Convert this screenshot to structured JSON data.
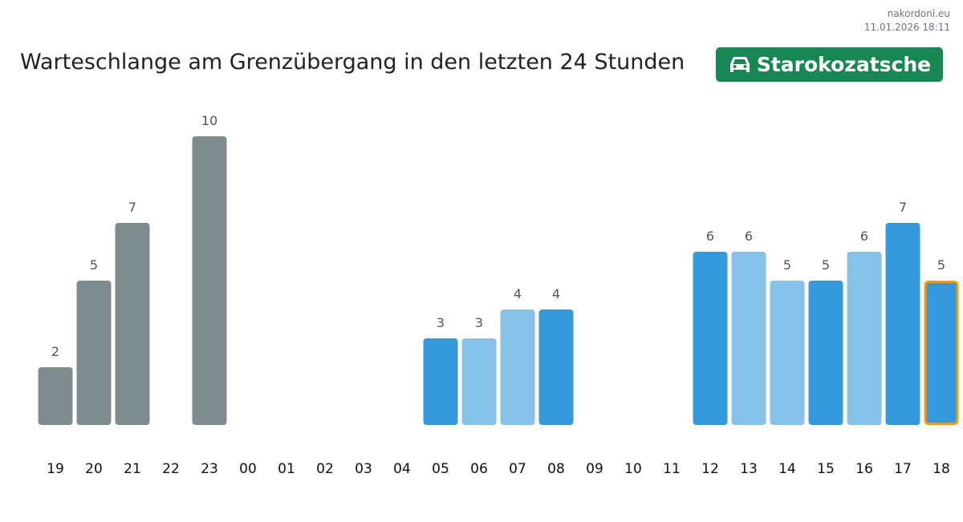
{
  "source": {
    "site": "nakordoni.eu",
    "timestamp": "11.01.2026 18:11"
  },
  "title": "Warteschlange am Grenzübergang in den letzten 24 Stunden",
  "badge": {
    "icon": "car-icon",
    "label": "Starokozatsche",
    "color": "#198754"
  },
  "colors": {
    "past": "#7f8c8d",
    "dark": "#3498db",
    "light": "#85c1e9",
    "highlight": "#ff9800"
  },
  "chart_data": {
    "type": "bar",
    "title": "Warteschlange am Grenzübergang in den letzten 24 Stunden",
    "xlabel": "",
    "ylabel": "",
    "ylim": [
      0,
      10
    ],
    "grid": false,
    "categories": [
      "19",
      "20",
      "21",
      "22",
      "23",
      "00",
      "01",
      "02",
      "03",
      "04",
      "05",
      "06",
      "07",
      "08",
      "09",
      "10",
      "11",
      "12",
      "13",
      "14",
      "15",
      "16",
      "17",
      "18"
    ],
    "values": [
      2,
      5,
      7,
      null,
      10,
      null,
      null,
      null,
      null,
      null,
      3,
      3,
      4,
      4,
      null,
      null,
      null,
      6,
      6,
      5,
      5,
      6,
      7,
      5
    ],
    "styles": [
      "past",
      "past",
      "past",
      null,
      "past",
      null,
      null,
      null,
      null,
      null,
      "dark",
      "light",
      "light",
      "dark",
      null,
      null,
      null,
      "dark",
      "light",
      "light",
      "dark",
      "light",
      "dark",
      "dark"
    ],
    "highlighted": "18"
  }
}
